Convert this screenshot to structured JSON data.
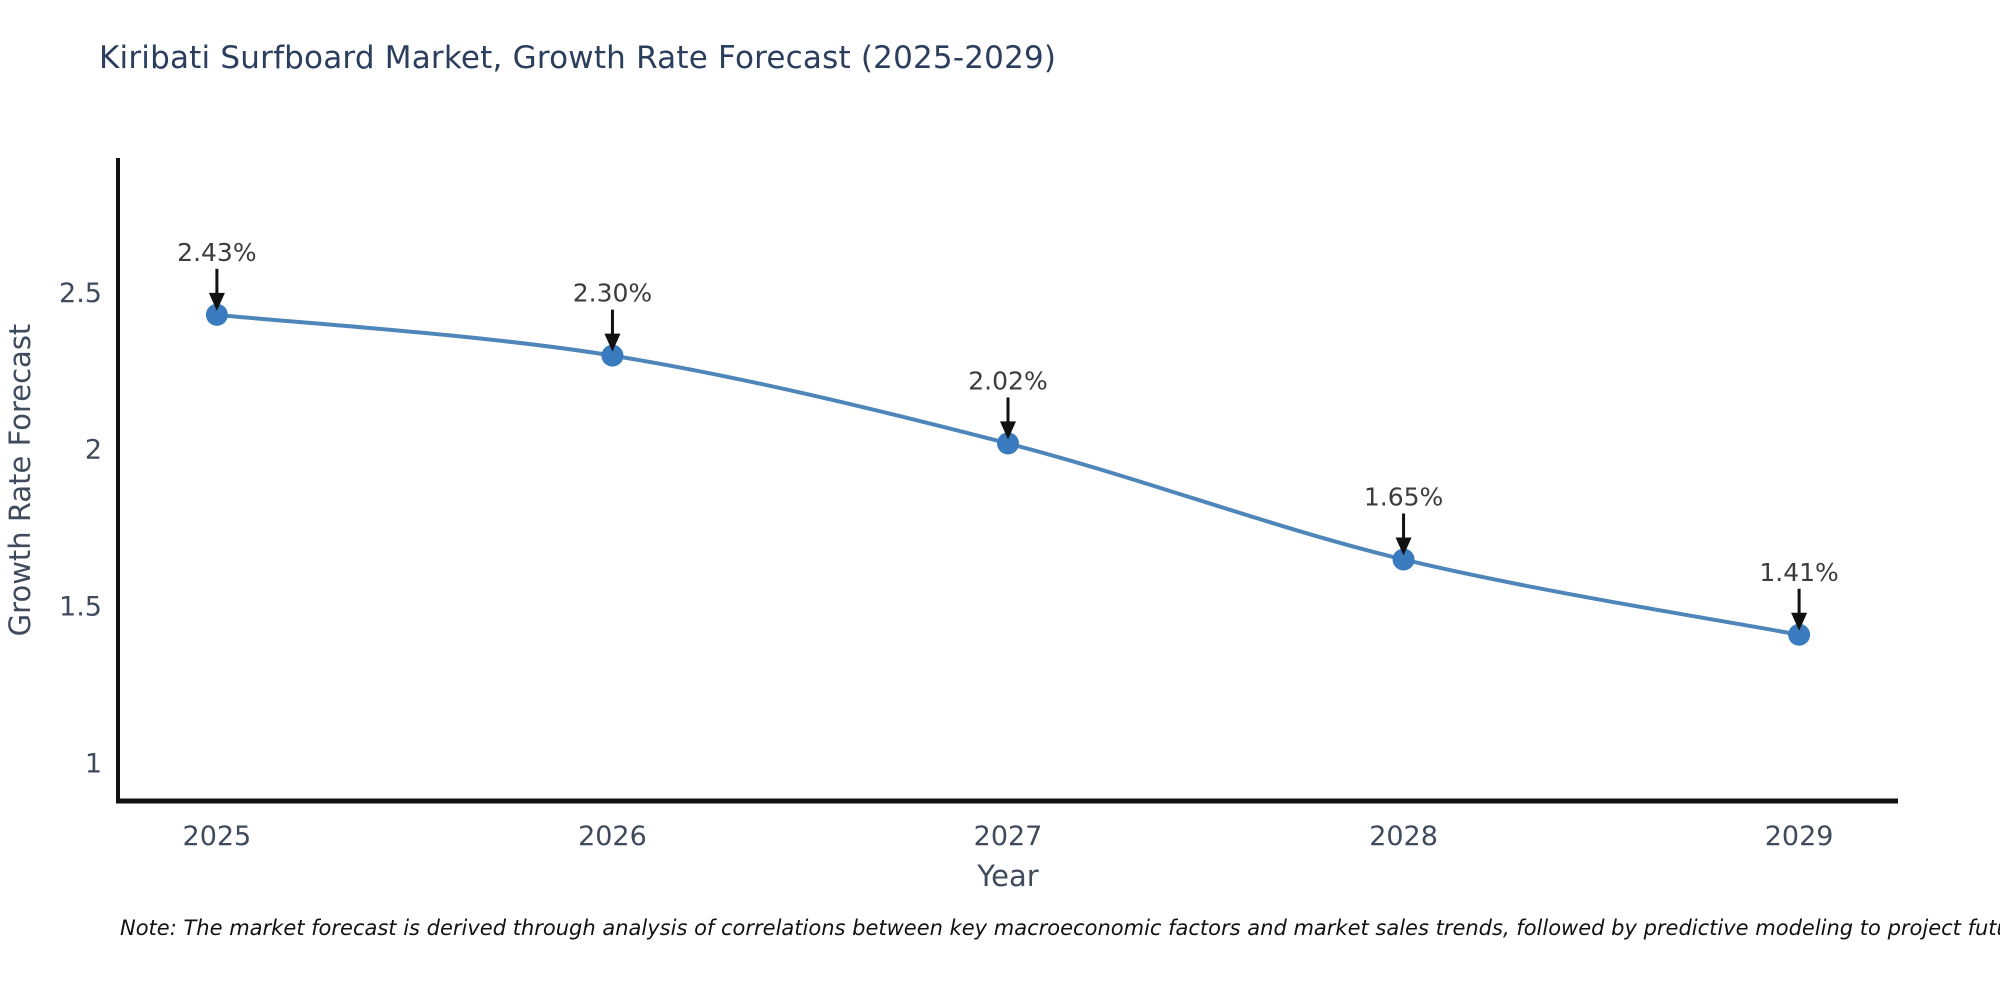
{
  "chart": {
    "title": "Kiribati Surfboard Market, Growth Rate Forecast (2025-2029)"
  },
  "note": "Note: The market forecast is derived through analysis of correlations between key macroeconomic factors and market sales trends, followed by predictive modeling to project future sales",
  "chart_data": {
    "type": "line",
    "x": [
      2025,
      2026,
      2027,
      2028,
      2029
    ],
    "values": [
      2.43,
      2.3,
      2.02,
      1.65,
      1.41
    ],
    "point_labels": [
      "2.43%",
      "2.30%",
      "2.02%",
      "1.65%",
      "1.41%"
    ],
    "title": "Kiribati Surfboard Market, Growth Rate Forecast (2025-2029)",
    "xlabel": "Year",
    "ylabel": "Growth Rate Forecast",
    "xticks": [
      "2025",
      "2026",
      "2027",
      "2028",
      "2029"
    ],
    "yticks": [
      1,
      1.5,
      2,
      2.5
    ],
    "ytick_labels": [
      "1",
      "1.5",
      "2",
      "2.5"
    ],
    "xlim": [
      2024.75,
      2029.25
    ],
    "ylim": [
      0.88,
      2.93
    ],
    "grid": false,
    "legend": "none",
    "annotation_style": "value labels above points with downward arrows",
    "colors": {
      "line": "#4e86ba",
      "marker": "#3a7bbf",
      "axis": "#111111",
      "tick_text": "#3f4a5c",
      "title_text": "#2c3e5d",
      "annotation_text": "#3c3c3c",
      "annotation_arrow": "#111111"
    }
  }
}
